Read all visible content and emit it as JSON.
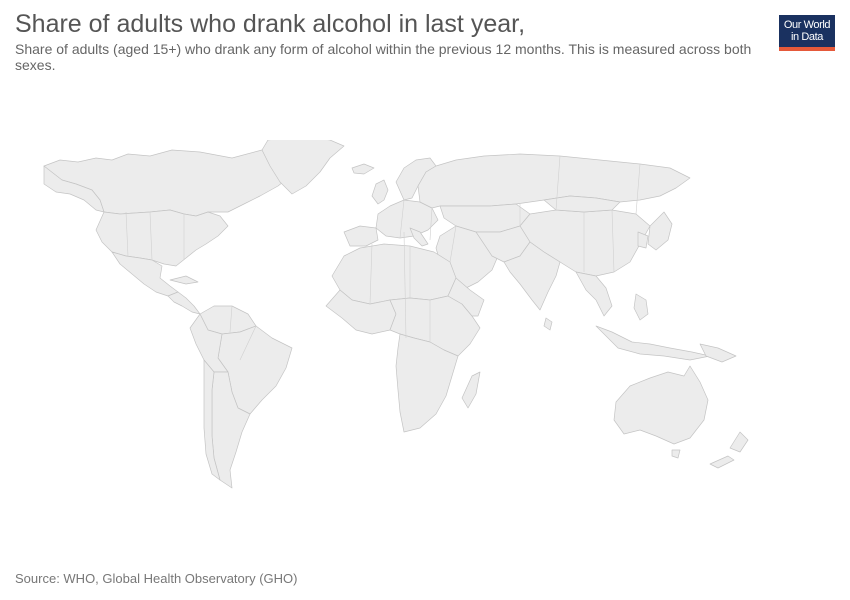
{
  "header": {
    "title": "Share of adults who drank alcohol in last year,",
    "subtitle": "Share of adults (aged 15+) who drank any form of alcohol within the previous 12 months. This is measured across both sexes."
  },
  "logo": {
    "line1": "Our World",
    "line2": "in Data",
    "background_color": "#1a3160",
    "accent_color": "#e5593a"
  },
  "map": {
    "land_color": "#ececec",
    "border_color": "#c4c4c4"
  },
  "footer": {
    "source": "Source: WHO, Global Health Observatory (GHO)"
  }
}
